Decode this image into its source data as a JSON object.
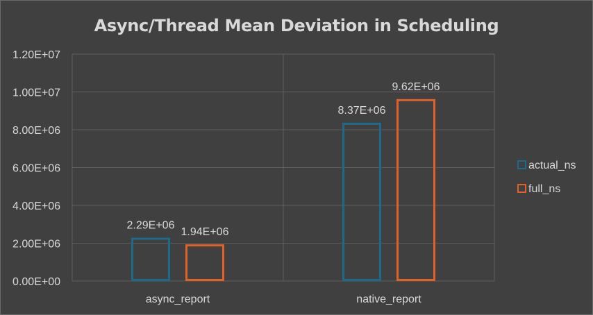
{
  "chart_data": {
    "type": "bar",
    "title": "Async/Thread Mean Deviation in Scheduling",
    "categories": [
      "async_report",
      "native_report"
    ],
    "series": [
      {
        "name": "actual_ns",
        "values": [
          2290000,
          8370000
        ],
        "labels": [
          "2.29E+06",
          "8.37E+06"
        ],
        "color": "#1f6a8c"
      },
      {
        "name": "full_ns",
        "values": [
          1940000,
          9620000
        ],
        "labels": [
          "1.94E+06",
          "9.62E+06"
        ],
        "color": "#e0622a"
      }
    ],
    "yticks": [
      0,
      2000000,
      4000000,
      6000000,
      8000000,
      10000000,
      12000000
    ],
    "ytick_labels": [
      "0.00E+00",
      "2.00E+06",
      "4.00E+06",
      "6.00E+06",
      "8.00E+06",
      "1.00E+07",
      "1.20E+07"
    ],
    "ylim": [
      0,
      12000000
    ],
    "xlabel": "",
    "ylabel": "",
    "grid": true,
    "legend_position": "right",
    "bar_style": "outlined"
  }
}
